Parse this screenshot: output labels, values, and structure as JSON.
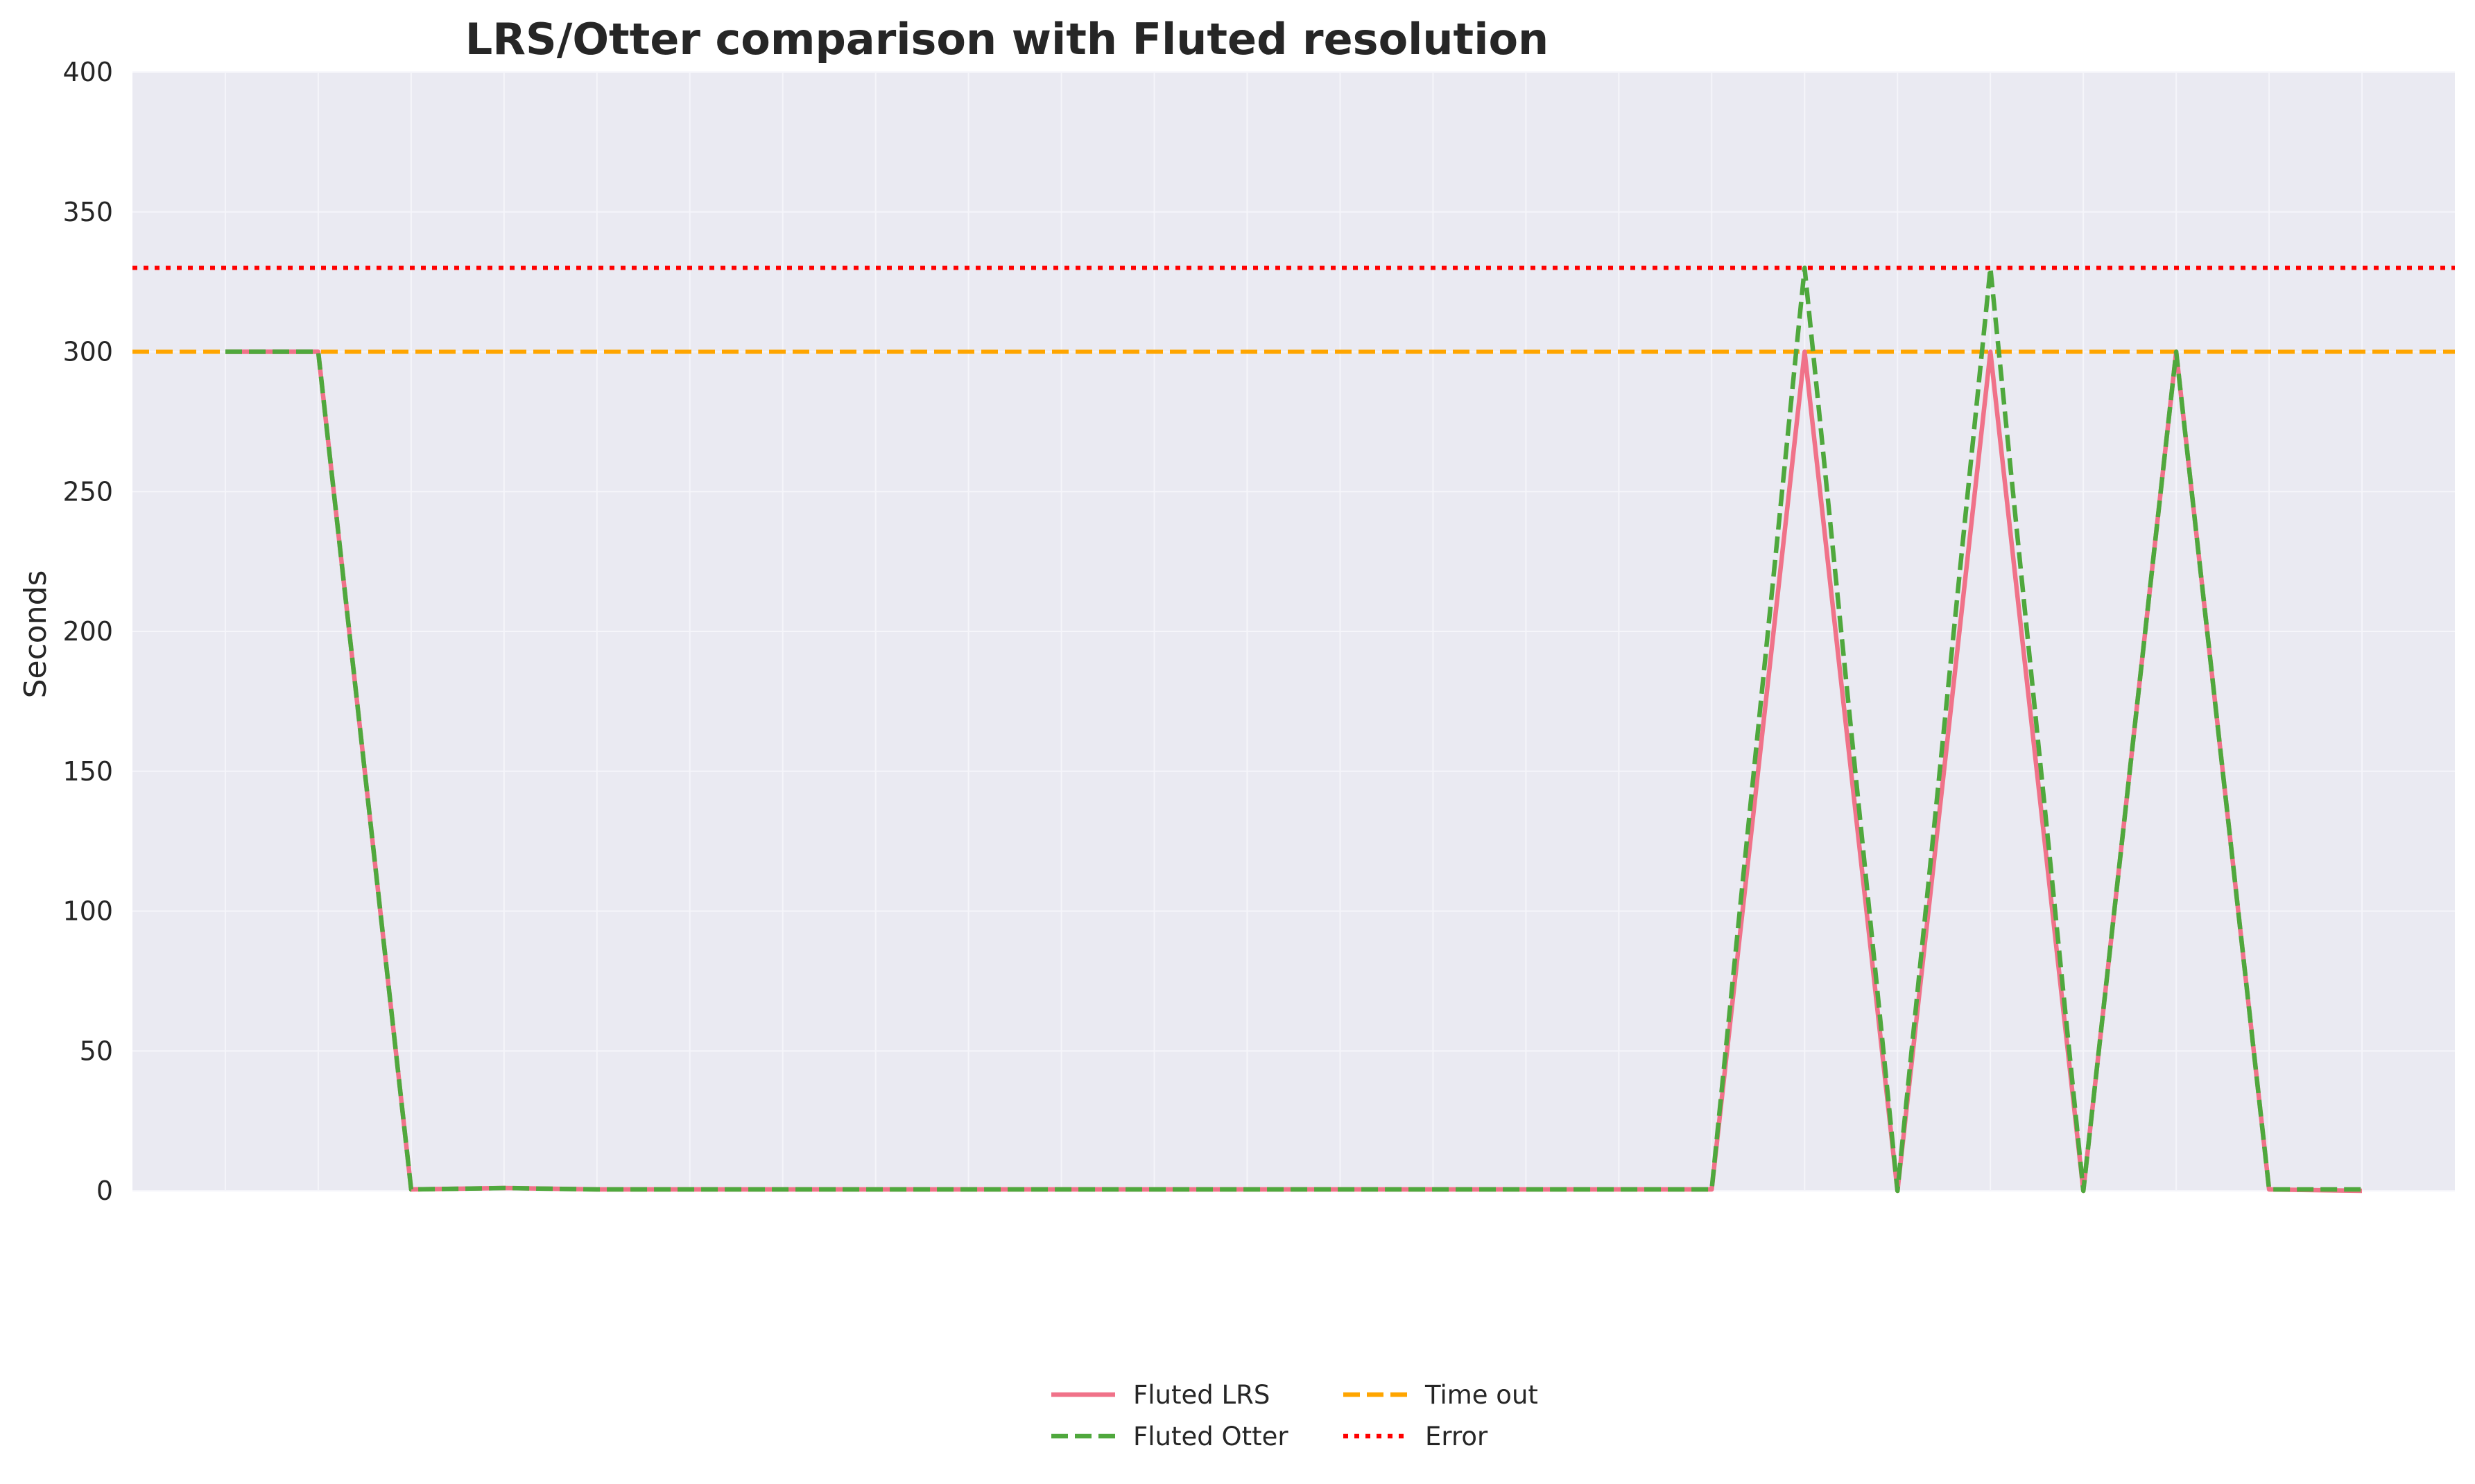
{
  "chart_data": {
    "type": "line",
    "title": "LRS/Otter comparison with Fluted resolution",
    "xlabel": "",
    "ylabel": "Seconds",
    "ylim": [
      0,
      400
    ],
    "yticks": [
      0,
      50,
      100,
      150,
      200,
      250,
      300,
      350,
      400
    ],
    "x": [
      1,
      2,
      3,
      4,
      5,
      6,
      7,
      8,
      9,
      10,
      11,
      12,
      13,
      14,
      15,
      16,
      17,
      18,
      19,
      20,
      21,
      22,
      23,
      24
    ],
    "xlim": [
      0,
      25
    ],
    "x_tick_labels_visible": false,
    "grid": true,
    "series": [
      {
        "name": "Fluted LRS",
        "color": "#f07289",
        "style": "solid",
        "values": [
          300,
          300,
          0.5,
          1,
          0.5,
          0.5,
          0.5,
          0.5,
          0.5,
          0.5,
          0.5,
          0.5,
          0.5,
          0.5,
          0.5,
          0.5,
          0.5,
          300,
          0,
          300,
          0,
          300,
          0.5,
          0
        ]
      },
      {
        "name": "Fluted Otter",
        "color": "#4fa83d",
        "style": "dashed",
        "values": [
          300,
          300,
          0.5,
          1,
          0.5,
          0.5,
          0.5,
          0.5,
          0.5,
          0.5,
          0.5,
          0.5,
          0.5,
          0.5,
          0.5,
          0.5,
          0.5,
          330,
          0,
          330,
          0,
          300,
          0.5,
          0.5
        ]
      }
    ],
    "reference_lines": [
      {
        "name": "Time out",
        "y": 300,
        "color": "#ffa500",
        "style": "dashed"
      },
      {
        "name": "Error",
        "y": 330,
        "color": "#ff0000",
        "style": "dotted"
      }
    ],
    "legend": {
      "placement": "bottom-center",
      "columns": 2,
      "entries": [
        "Fluted LRS",
        "Fluted Otter",
        "Time out",
        "Error"
      ]
    },
    "colors": {
      "plot_background": "#eaeaf2",
      "grid": "#f5f5fa",
      "text": "#262626"
    }
  }
}
